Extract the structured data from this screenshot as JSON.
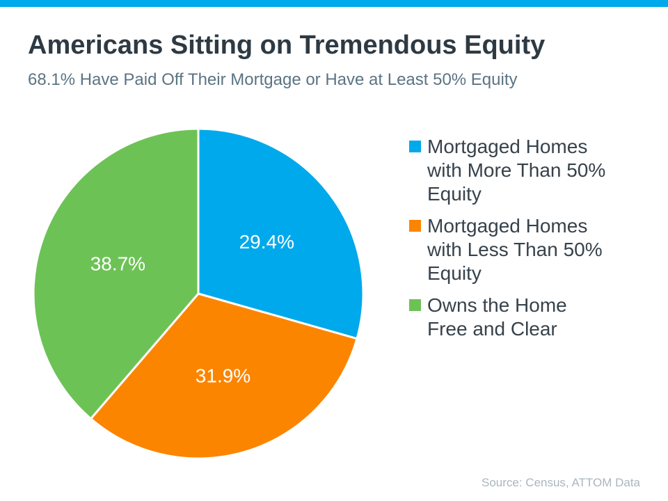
{
  "page": {
    "title": "Americans Sitting on Tremendous Equity",
    "subtitle": "68.1% Have Paid Off Their Mortgage or Have at Least 50% Equity",
    "source": "Source: Census, ATTOM Data"
  },
  "colors": {
    "top_bar": "#00A9EB",
    "title_text": "#2E3A43",
    "subtitle_text": "#5B7482",
    "legend_text": "#37424B",
    "source_text": "#A9B6BE",
    "slice_border": "#FFFFFF"
  },
  "chart_data": {
    "type": "pie",
    "title": "Americans Sitting on Tremendous Equity",
    "subtitle": "68.1% Have Paid Off Their Mortgage or Have at Least 50% Equity",
    "start_angle_deg": 0,
    "direction": "clockwise",
    "legend_position": "right",
    "source": "Source: Census, ATTOM Data",
    "slices": [
      {
        "label": "Mortgaged Homes with More Than 50% Equity",
        "value": 29.4,
        "display": "29.4%",
        "color": "#00A9EB"
      },
      {
        "label": "Mortgaged Homes with Less Than 50% Equity",
        "value": 31.9,
        "display": "31.9%",
        "color": "#FC8500"
      },
      {
        "label": "Owns the Home Free and Clear",
        "value": 38.7,
        "display": "38.7%",
        "color": "#6DC256"
      }
    ]
  },
  "legend": {
    "items": [
      {
        "color": "#00A9EB",
        "lines": [
          "Mortgaged Homes",
          "with More Than 50%",
          "Equity"
        ]
      },
      {
        "color": "#FC8500",
        "lines": [
          "Mortgaged Homes",
          "with Less Than 50%",
          "Equity"
        ]
      },
      {
        "color": "#6DC256",
        "lines": [
          "Owns the Home",
          "Free and Clear"
        ]
      }
    ]
  }
}
